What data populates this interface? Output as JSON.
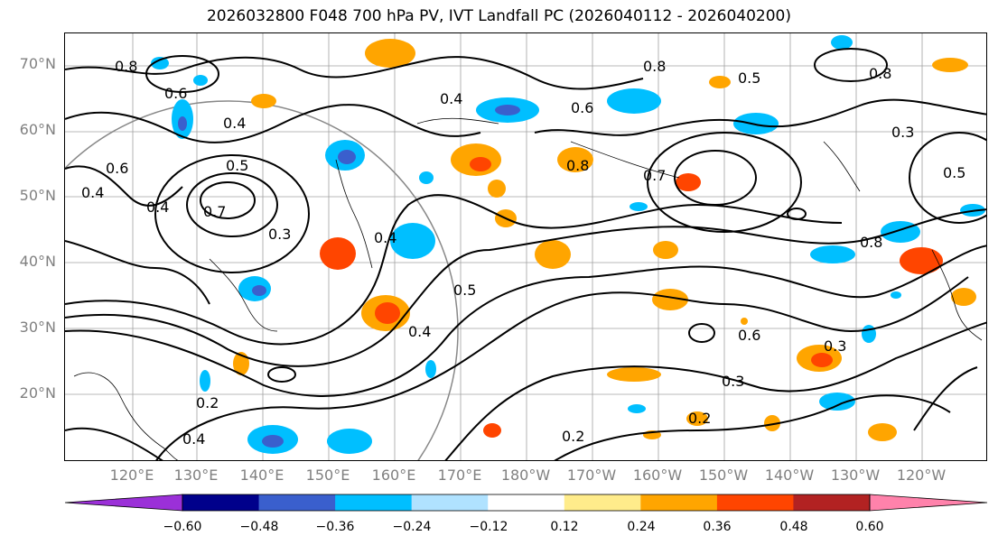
{
  "title": "2026032800 F048 700 hPa PV, IVT Landfall PC (2026040112 - 2026040200)",
  "lat_labels": [
    "70°N",
    "60°N",
    "50°N",
    "40°N",
    "30°N",
    "20°N"
  ],
  "lon_labels": [
    "120°E",
    "130°E",
    "140°E",
    "150°E",
    "160°E",
    "170°E",
    "180°W",
    "170°W",
    "160°W",
    "150°W",
    "140°W",
    "130°W",
    "120°W"
  ],
  "contour_labels": [
    "0.8",
    "0.6",
    "0.4",
    "0.2",
    "0.5",
    "0.7",
    "0.3",
    "0.6",
    "0.8",
    "0.4",
    "0.5",
    "0.3",
    "0.2",
    "0.4"
  ],
  "colorbar": {
    "ticks": [
      "−0.60",
      "−0.48",
      "−0.36",
      "−0.24",
      "−0.12",
      "0.12",
      "0.24",
      "0.36",
      "0.48",
      "0.60"
    ],
    "colors": [
      "#9b30d8",
      "#00008b",
      "#3a5fcd",
      "#00bfff",
      "#b0e2ff",
      "#ffffff",
      "#ffec8b",
      "#ffa500",
      "#ff4500",
      "#b22222",
      "#ff82ab"
    ]
  },
  "fills": {
    "blue_light": "#00bfff",
    "blue_mid": "#3a5fcd",
    "orange": "#ffa500",
    "red": "#ff4500",
    "yellow": "#ffec8b"
  }
}
